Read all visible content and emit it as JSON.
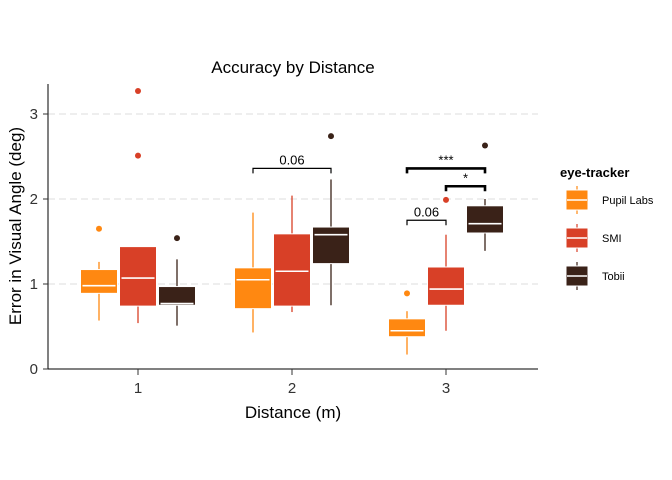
{
  "chart_data": {
    "type": "boxplot",
    "title": "Accuracy by Distance",
    "xlabel": "Distance (m)",
    "ylabel": "Error in Visual Angle (deg)",
    "categories": [
      "1",
      "2",
      "3"
    ],
    "yticks": [
      "0",
      "1",
      "2",
      "3"
    ],
    "ylim": [
      0,
      3.35
    ],
    "grid": "horizontal dashed",
    "legend": {
      "title": "eye-tracker",
      "placement": "right"
    },
    "series": [
      {
        "name": "Pupil Labs",
        "color": "#FF8811",
        "boxes": [
          {
            "min": 0.57,
            "q1": 0.89,
            "median": 0.98,
            "q3": 1.17,
            "max": 1.26,
            "outliers": [
              1.65
            ]
          },
          {
            "min": 0.43,
            "q1": 0.71,
            "median": 1.05,
            "q3": 1.19,
            "max": 1.84,
            "outliers": []
          },
          {
            "min": 0.17,
            "q1": 0.38,
            "median": 0.45,
            "q3": 0.59,
            "max": 0.68,
            "outliers": [
              0.89
            ]
          }
        ]
      },
      {
        "name": "SMI",
        "color": "#D84027",
        "boxes": [
          {
            "min": 0.54,
            "q1": 0.74,
            "median": 1.07,
            "q3": 1.44,
            "max": 1.44,
            "outliers": [
              2.51,
              3.27
            ]
          },
          {
            "min": 0.67,
            "q1": 0.74,
            "median": 1.15,
            "q3": 1.59,
            "max": 2.04,
            "outliers": []
          },
          {
            "min": 0.45,
            "q1": 0.75,
            "median": 0.94,
            "q3": 1.2,
            "max": 1.58,
            "outliers": [
              1.99
            ]
          }
        ]
      },
      {
        "name": "Tobii",
        "color": "#3A2218",
        "boxes": [
          {
            "min": 0.51,
            "q1": 0.75,
            "median": 0.77,
            "q3": 0.97,
            "max": 1.29,
            "outliers": [
              1.54
            ]
          },
          {
            "min": 0.75,
            "q1": 1.24,
            "median": 1.58,
            "q3": 1.67,
            "max": 2.23,
            "outliers": [
              2.74
            ]
          },
          {
            "min": 1.39,
            "q1": 1.6,
            "median": 1.71,
            "q3": 1.92,
            "max": 2.0,
            "outliers": [
              2.63
            ]
          }
        ]
      }
    ],
    "annotations": [
      {
        "label": "0.06",
        "category": 1,
        "from": 0,
        "to": 2,
        "y": 2.36,
        "bold": false
      },
      {
        "label": "0.06",
        "category": 2,
        "from": 0,
        "to": 1,
        "y": 1.75,
        "bold": false
      },
      {
        "label": "*",
        "category": 2,
        "from": 1,
        "to": 2,
        "y": 2.15,
        "bold": true
      },
      {
        "label": "***",
        "category": 2,
        "from": 0,
        "to": 2,
        "y": 2.36,
        "bold": true
      }
    ]
  }
}
